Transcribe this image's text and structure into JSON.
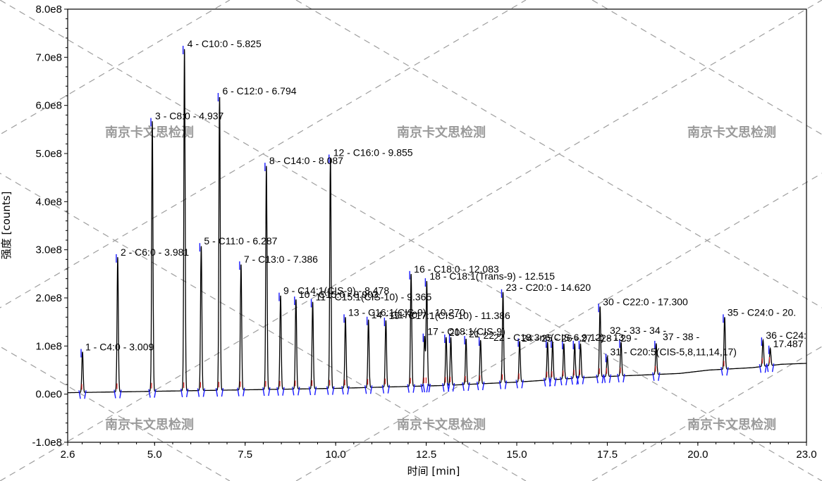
{
  "chart_data": {
    "type": "line",
    "title": "",
    "xlabel": "时间 [min]",
    "ylabel": "强度 [counts]",
    "xlim": [
      2.6,
      23.0
    ],
    "ylim": [
      -100000000.0,
      800000000.0
    ],
    "x_ticks": [
      2.6,
      5.0,
      7.5,
      10.0,
      12.5,
      15.0,
      17.5,
      20.0,
      23.0
    ],
    "x_tick_labels": [
      "2.6",
      "5.0",
      "7.5",
      "10.0",
      "12.5",
      "15.0",
      "17.5",
      "20.0",
      "23.0"
    ],
    "y_ticks": [
      -100000000.0,
      0,
      100000000.0,
      200000000.0,
      300000000.0,
      400000000.0,
      500000000.0,
      600000000.0,
      700000000.0,
      800000000.0
    ],
    "y_tick_labels": [
      "-1.0e8",
      "0.0e0",
      "1.0e8",
      "2.0e8",
      "3.0e8",
      "4.0e8",
      "5.0e8",
      "6.0e8",
      "7.0e8",
      "8.0e8"
    ],
    "grid": false,
    "line_color": "#000000",
    "marker_color": "#1a1aff",
    "baseline": [
      [
        2.6,
        3000000.0
      ],
      [
        10.0,
        12000000.0
      ],
      [
        13.0,
        18000000.0
      ],
      [
        15.0,
        25000000.0
      ],
      [
        17.0,
        35000000.0
      ],
      [
        19.5,
        43000000.0
      ],
      [
        20.3,
        50000000.0
      ],
      [
        21.5,
        55000000.0
      ],
      [
        22.3,
        62000000.0
      ],
      [
        23.0,
        64000000.0
      ]
    ],
    "peaks": [
      {
        "rt": 3.009,
        "height": 88000000.0,
        "label": "1 - C4:0 - 3.009"
      },
      {
        "rt": 3.981,
        "height": 285000000.0,
        "label": "2 - C6:0 - 3.981"
      },
      {
        "rt": 4.937,
        "height": 568000000.0,
        "label": "3 - C8:0 - 4.937"
      },
      {
        "rt": 5.825,
        "height": 718000000.0,
        "label": "4 - C10:0 - 5.825"
      },
      {
        "rt": 6.287,
        "height": 308000000.0,
        "label": "5 - C11:0 - 6.287"
      },
      {
        "rt": 6.794,
        "height": 620000000.0,
        "label": "6 - C12:0 - 6.794"
      },
      {
        "rt": 7.386,
        "height": 270000000.0,
        "label": "7 - C13:0 - 7.386"
      },
      {
        "rt": 8.087,
        "height": 475000000.0,
        "label": "8 - C14:0 - 8.087"
      },
      {
        "rt": 8.478,
        "height": 205000000.0,
        "label": "9 - C14:1(CIS-9) - 8.478"
      },
      {
        "rt": 8.903,
        "height": 197000000.0,
        "label": "10 - C15:0 - 8.903"
      },
      {
        "rt": 9.365,
        "height": 192000000.0,
        "label": "11 - C15:1(CIS-10) - 9.365"
      },
      {
        "rt": 9.855,
        "height": 492000000.0,
        "label": "12 - C16:0 - 9.855"
      },
      {
        "rt": 10.27,
        "height": 160000000.0,
        "label": "13 - C16:1(CIS-9) - 10.270"
      },
      {
        "rt": 10.905,
        "height": 155000000.0,
        "label": "14 - C17:0"
      },
      {
        "rt": 11.386,
        "height": 153000000.0,
        "label": "15 - C17:1(CIS-10) - 11.386"
      },
      {
        "rt": 12.083,
        "height": 250000000.0,
        "label": "16 - C18:0 - 12.083"
      },
      {
        "rt": 12.515,
        "height": 235000000.0,
        "label": "18 - C18:1(Trans-9) - 12.515"
      },
      {
        "rt": 12.455,
        "height": 120000000.0,
        "label": "17 - C18:1(CIS-9)"
      },
      {
        "rt": 13.05,
        "height": 118000000.0,
        "label": "20 -"
      },
      {
        "rt": 13.18,
        "height": 118000000.0,
        "label": ""
      },
      {
        "rt": 13.6,
        "height": 115000000.0,
        "label": "21 -"
      },
      {
        "rt": 14.0,
        "height": 112000000.0,
        "label": "22 -"
      },
      {
        "rt": 14.62,
        "height": 212000000.0,
        "label": "23 - C20:0 - 14.620"
      },
      {
        "rt": 15.08,
        "height": 110000000.0,
        "label": ""
      },
      {
        "rt": 15.85,
        "height": 108000000.0,
        "label": ""
      },
      {
        "rt": 15.99,
        "height": 108000000.0,
        "label": ""
      },
      {
        "rt": 16.3,
        "height": 105000000.0,
        "label": ""
      },
      {
        "rt": 16.6,
        "height": 105000000.0,
        "label": ""
      },
      {
        "rt": 16.76,
        "height": 105000000.0,
        "label": ""
      },
      {
        "rt": 17.3,
        "height": 182000000.0,
        "label": "30 - C22:0 - 17.300"
      },
      {
        "rt": 17.5,
        "height": 78000000.0,
        "label": "31 - C20:5(CIS-5,8,11,14,17)"
      },
      {
        "rt": 17.88,
        "height": 108000000.0,
        "label": ""
      },
      {
        "rt": 18.85,
        "height": 105000000.0,
        "label": ""
      },
      {
        "rt": 20.74,
        "height": 160000000.0,
        "label": "35 - C24:0 - 20."
      },
      {
        "rt": 21.8,
        "height": 112000000.0,
        "label": "36 - C24:"
      },
      {
        "rt": 22.0,
        "height": 95000000.0,
        "label": "17.487"
      }
    ]
  },
  "watermarks": [
    "南京卡文思检测",
    "南京卡文思检测",
    "南京卡文思检测",
    "南京卡文思检测",
    "南京卡文思检测",
    "南京卡文思检测"
  ],
  "overlap_labels": [
    "22 - C18:3n6(CIS-6,9,12) - 13.",
    "24 - 25 - 26 - 27 - 28 - 29 -",
    "32 - 33 - 34 -",
    "37 - 38 -"
  ]
}
